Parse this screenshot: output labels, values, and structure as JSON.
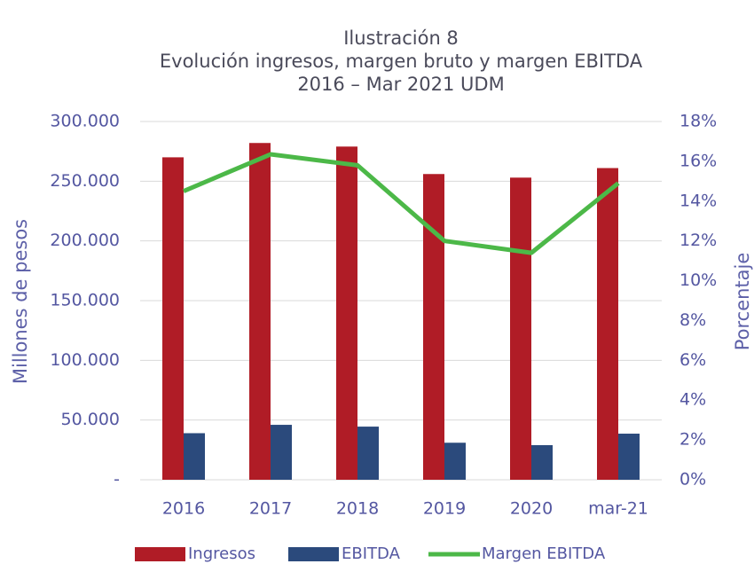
{
  "chart_data": {
    "type": "bar-line",
    "title": [
      "Ilustración 8",
      "Evolución ingresos, margen bruto y margen EBITDA",
      "2016 – Mar 2021 UDM"
    ],
    "ylabel": "Millones de pesos",
    "y2label": "Porcentaje",
    "categories": [
      "2016",
      "2017",
      "2018",
      "2019",
      "2020",
      "mar-21"
    ],
    "series": [
      {
        "name": "Ingresos",
        "type": "bar",
        "color": "#b01c26",
        "values": [
          270000,
          282000,
          279000,
          256000,
          253000,
          261000
        ]
      },
      {
        "name": "EBITDA",
        "type": "bar",
        "color": "#2b4a7c",
        "values": [
          39000,
          46000,
          44500,
          31000,
          29000,
          38600
        ]
      },
      {
        "name": "Margen EBITDA",
        "type": "line",
        "axis": "y2",
        "color": "#4cb848",
        "values": [
          14.5,
          16.35,
          15.8,
          12.0,
          11.4,
          14.9
        ]
      }
    ],
    "ylim": [
      0,
      300000
    ],
    "yticks": [
      {
        "value": 0,
        "label": "-"
      },
      {
        "value": 50000,
        "label": "50.000"
      },
      {
        "value": 100000,
        "label": "100.000"
      },
      {
        "value": 150000,
        "label": "150.000"
      },
      {
        "value": 200000,
        "label": "200.000"
      },
      {
        "value": 250000,
        "label": "250.000"
      },
      {
        "value": 300000,
        "label": "300.000"
      }
    ],
    "y2lim": [
      0,
      18
    ],
    "y2ticks": [
      {
        "value": 0,
        "label": "0%"
      },
      {
        "value": 2,
        "label": "2%"
      },
      {
        "value": 4,
        "label": "4%"
      },
      {
        "value": 6,
        "label": "6%"
      },
      {
        "value": 8,
        "label": "8%"
      },
      {
        "value": 10,
        "label": "10%"
      },
      {
        "value": 12,
        "label": "12%"
      },
      {
        "value": 14,
        "label": "14%"
      },
      {
        "value": 16,
        "label": "16%"
      },
      {
        "value": 18,
        "label": "18%"
      }
    ],
    "grid": true,
    "legend": "bottom"
  }
}
